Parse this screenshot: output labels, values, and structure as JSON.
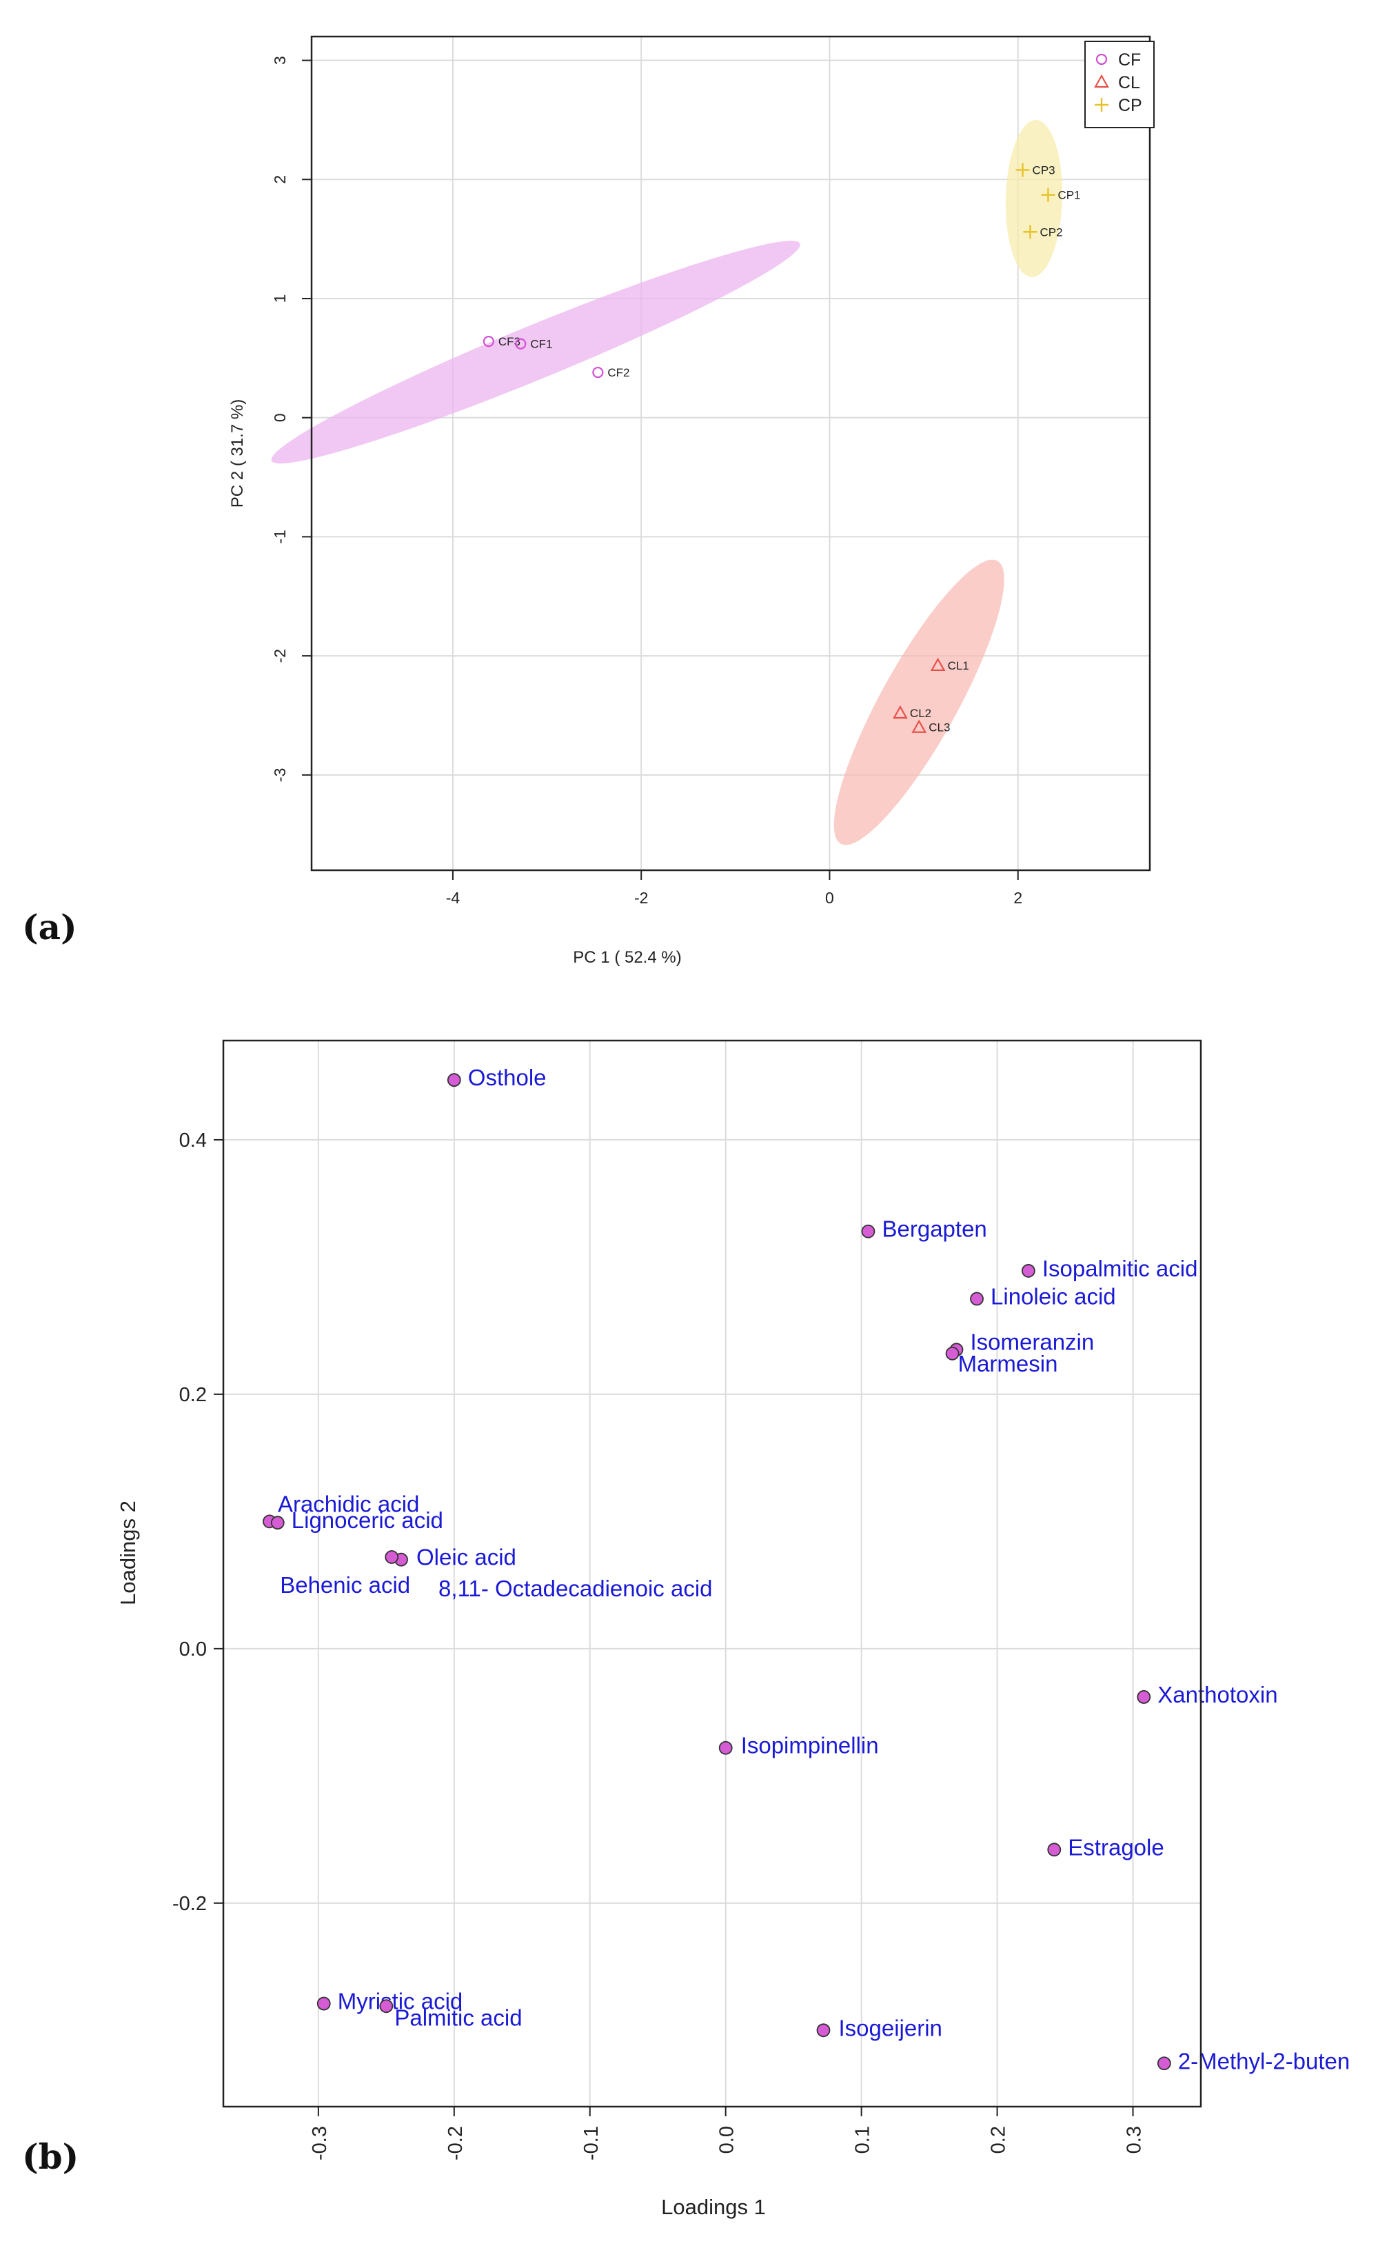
{
  "panel_labels": {
    "a": "(a)",
    "b": "(b)"
  },
  "chart_data": [
    {
      "type": "scatter",
      "panel": "(a)",
      "xlabel": "PC 1 ( 52.4 %)",
      "ylabel": "PC 2 ( 31.7 %)",
      "xlim": [
        -5.5,
        3.4
      ],
      "ylim": [
        -3.8,
        3.2
      ],
      "xticks": [
        -4,
        -2,
        0,
        2
      ],
      "yticks": [
        -3,
        -2,
        -1,
        0,
        1,
        2,
        3
      ],
      "xtick_labels": [
        "-4",
        "-2",
        "0",
        "2"
      ],
      "ytick_labels": [
        "-3",
        "-2",
        "-1",
        "0",
        "1",
        "2",
        "3"
      ],
      "grid": true,
      "legend": {
        "placement": "top-right",
        "entries": [
          {
            "label": "CF",
            "symbol": "circle",
            "color": "#d34ed6"
          },
          {
            "label": "CL",
            "symbol": "triangle",
            "color": "#e8514b"
          },
          {
            "label": "CP",
            "symbol": "plus",
            "color": "#e8c22a"
          }
        ]
      },
      "series": [
        {
          "name": "CF",
          "color": "#d34ed6",
          "fill": "#ecb6ef",
          "symbol": "circle",
          "points": [
            {
              "label": "CF3",
              "x": -3.62,
              "y": 0.64
            },
            {
              "label": "CF1",
              "x": -3.28,
              "y": 0.62
            },
            {
              "label": "CF2",
              "x": -2.46,
              "y": 0.38
            }
          ],
          "ellipse": {
            "cx": -3.12,
            "cy": 0.55,
            "semi_major": 2.95,
            "semi_minor": 0.23,
            "angle_deg": 18
          }
        },
        {
          "name": "CL",
          "color": "#e8514b",
          "fill": "#f8bcb6",
          "symbol": "triangle",
          "points": [
            {
              "label": "CL1",
              "x": 1.15,
              "y": -2.08
            },
            {
              "label": "CL2",
              "x": 0.75,
              "y": -2.48
            },
            {
              "label": "CL3",
              "x": 0.95,
              "y": -2.6
            }
          ],
          "ellipse": {
            "cx": 0.95,
            "cy": -2.39,
            "semi_major": 1.45,
            "semi_minor": 0.37,
            "angle_deg": 55
          }
        },
        {
          "name": "CP",
          "color": "#e8c22a",
          "fill": "#f7ecae",
          "symbol": "plus",
          "points": [
            {
              "label": "CP3",
              "x": 2.05,
              "y": 2.08
            },
            {
              "label": "CP1",
              "x": 2.32,
              "y": 1.87
            },
            {
              "label": "CP2",
              "x": 2.13,
              "y": 1.56
            }
          ],
          "ellipse": {
            "cx": 2.17,
            "cy": 1.84,
            "semi_major": 0.66,
            "semi_minor": 0.3,
            "angle_deg": 88
          }
        }
      ]
    },
    {
      "type": "scatter",
      "panel": "(b)",
      "xlabel": "Loadings 1",
      "ylabel": "Loadings 2",
      "xlim": [
        -0.37,
        0.35
      ],
      "ylim": [
        -0.36,
        0.478
      ],
      "xticks": [
        -0.3,
        -0.2,
        -0.1,
        0.0,
        0.1,
        0.2,
        0.3
      ],
      "yticks": [
        -0.2,
        0.0,
        0.2,
        0.4
      ],
      "xtick_labels": [
        "-0.3",
        "-0.2",
        "-0.1",
        "0.0",
        "0.1",
        "0.2",
        "0.3"
      ],
      "ytick_labels": [
        "-0.2",
        "0.0",
        "0.2",
        "0.4"
      ],
      "grid": true,
      "point_color": "#d65cd6",
      "label_color": "#1a1ad6",
      "points": [
        {
          "label": "Osthole",
          "x": -0.2,
          "y": 0.447
        },
        {
          "label": "Bergapten",
          "x": 0.105,
          "y": 0.328
        },
        {
          "label": "Isopalmitic acid",
          "x": 0.223,
          "y": 0.297
        },
        {
          "label": "Linoleic acid",
          "x": 0.185,
          "y": 0.275
        },
        {
          "label": "Isomeranzin",
          "x": 0.17,
          "y": 0.235
        },
        {
          "label": "Marmesin",
          "x": 0.167,
          "y": 0.232
        },
        {
          "label": "Arachidic acid",
          "x": -0.336,
          "y": 0.1
        },
        {
          "label": "Lignoceric acid",
          "x": -0.33,
          "y": 0.099
        },
        {
          "label": "Oleic acid",
          "x": -0.239,
          "y": 0.07
        },
        {
          "label": "Behenic acid",
          "x": -0.246,
          "y": 0.072
        },
        {
          "label": "8,11- Octadecadienoic acid",
          "x": -0.241,
          "y": 0.071
        },
        {
          "label": "Xanthotoxin",
          "x": 0.308,
          "y": -0.038
        },
        {
          "label": "Isopimpinellin",
          "x": 0.0,
          "y": -0.078
        },
        {
          "label": "Estragole",
          "x": 0.242,
          "y": -0.158
        },
        {
          "label": "Myristic acid",
          "x": -0.296,
          "y": -0.279
        },
        {
          "label": "Palmitic acid",
          "x": -0.25,
          "y": -0.281
        },
        {
          "label": "Isogeijerin",
          "x": 0.072,
          "y": -0.3
        },
        {
          "label": "2-Methyl-2-buten",
          "x": 0.323,
          "y": -0.326
        }
      ]
    }
  ]
}
